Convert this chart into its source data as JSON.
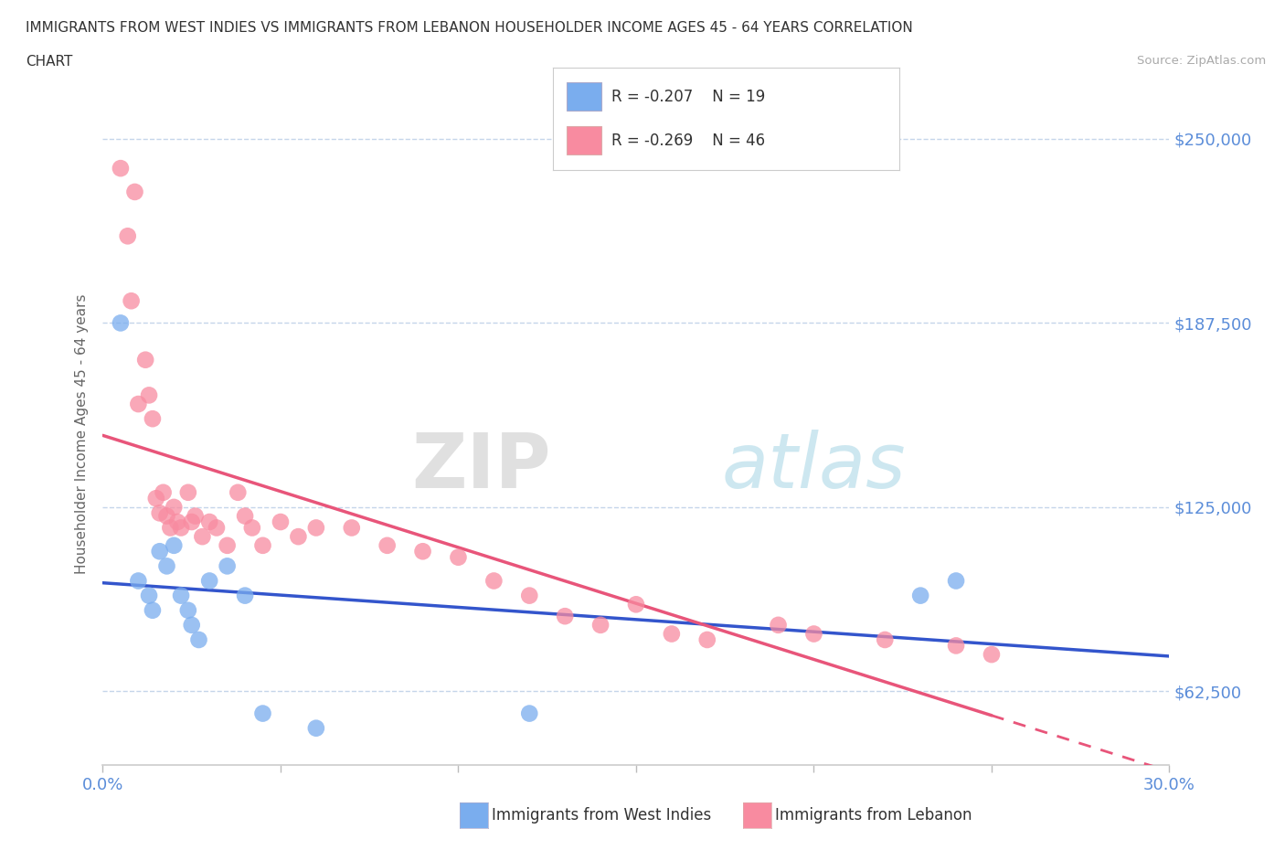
{
  "title_line1": "IMMIGRANTS FROM WEST INDIES VS IMMIGRANTS FROM LEBANON HOUSEHOLDER INCOME AGES 45 - 64 YEARS CORRELATION",
  "title_line2": "CHART",
  "source": "Source: ZipAtlas.com",
  "ylabel": "Householder Income Ages 45 - 64 years",
  "xlim": [
    0.0,
    0.3
  ],
  "ylim": [
    37500,
    262500
  ],
  "yticks": [
    62500,
    125000,
    187500,
    250000
  ],
  "ytick_labels": [
    "$62,500",
    "$125,000",
    "$187,500",
    "$250,000"
  ],
  "xticks": [
    0.0,
    0.05,
    0.1,
    0.15,
    0.2,
    0.25,
    0.3
  ],
  "xtick_labels": [
    "0.0%",
    "",
    "",
    "",
    "",
    "",
    "30.0%"
  ],
  "color_west_indies": "#7aadee",
  "color_lebanon": "#f88ba0",
  "color_line_west_indies": "#3355cc",
  "color_line_lebanon": "#e8557a",
  "color_axis_labels": "#5b8dd9",
  "color_grid": "#c5d5ea",
  "legend_r_west_indies": "R = -0.207",
  "legend_n_west_indies": "N = 19",
  "legend_r_lebanon": "R = -0.269",
  "legend_n_lebanon": "N = 46",
  "west_indies_x": [
    0.005,
    0.01,
    0.013,
    0.014,
    0.016,
    0.018,
    0.02,
    0.022,
    0.024,
    0.025,
    0.027,
    0.03,
    0.035,
    0.04,
    0.045,
    0.06,
    0.12,
    0.23,
    0.24
  ],
  "west_indies_y": [
    187500,
    100000,
    95000,
    90000,
    110000,
    105000,
    112000,
    95000,
    90000,
    85000,
    80000,
    100000,
    105000,
    95000,
    55000,
    50000,
    55000,
    95000,
    100000
  ],
  "lebanon_x": [
    0.005,
    0.007,
    0.008,
    0.009,
    0.01,
    0.012,
    0.013,
    0.014,
    0.015,
    0.016,
    0.017,
    0.018,
    0.019,
    0.02,
    0.021,
    0.022,
    0.024,
    0.025,
    0.026,
    0.028,
    0.03,
    0.032,
    0.035,
    0.038,
    0.04,
    0.042,
    0.045,
    0.05,
    0.055,
    0.06,
    0.07,
    0.08,
    0.09,
    0.1,
    0.11,
    0.12,
    0.13,
    0.14,
    0.15,
    0.16,
    0.17,
    0.19,
    0.2,
    0.22,
    0.24,
    0.25
  ],
  "lebanon_y": [
    240000,
    217000,
    195000,
    232000,
    160000,
    175000,
    163000,
    155000,
    128000,
    123000,
    130000,
    122000,
    118000,
    125000,
    120000,
    118000,
    130000,
    120000,
    122000,
    115000,
    120000,
    118000,
    112000,
    130000,
    122000,
    118000,
    112000,
    120000,
    115000,
    118000,
    118000,
    112000,
    110000,
    108000,
    100000,
    95000,
    88000,
    85000,
    92000,
    82000,
    80000,
    85000,
    82000,
    80000,
    78000,
    75000
  ],
  "watermark_zip": "ZIP",
  "watermark_atlas": "atlas",
  "background_color": "#ffffff"
}
